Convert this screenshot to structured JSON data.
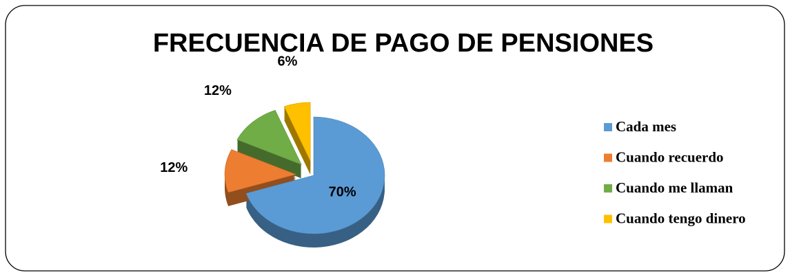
{
  "chart_data": {
    "type": "pie",
    "title": "FRECUENCIA DE PAGO DE PENSIONES",
    "categories": [
      "Cada mes",
      "Cuando recuerdo",
      "Cuando me llaman",
      "Cuando tengo dinero"
    ],
    "values": [
      70,
      12,
      12,
      6
    ],
    "value_labels": [
      "70%",
      "12%",
      "12%",
      "6%"
    ],
    "colors": [
      "#5b9bd5",
      "#ed7d31",
      "#70ad47",
      "#ffc000"
    ],
    "legend": "right"
  }
}
